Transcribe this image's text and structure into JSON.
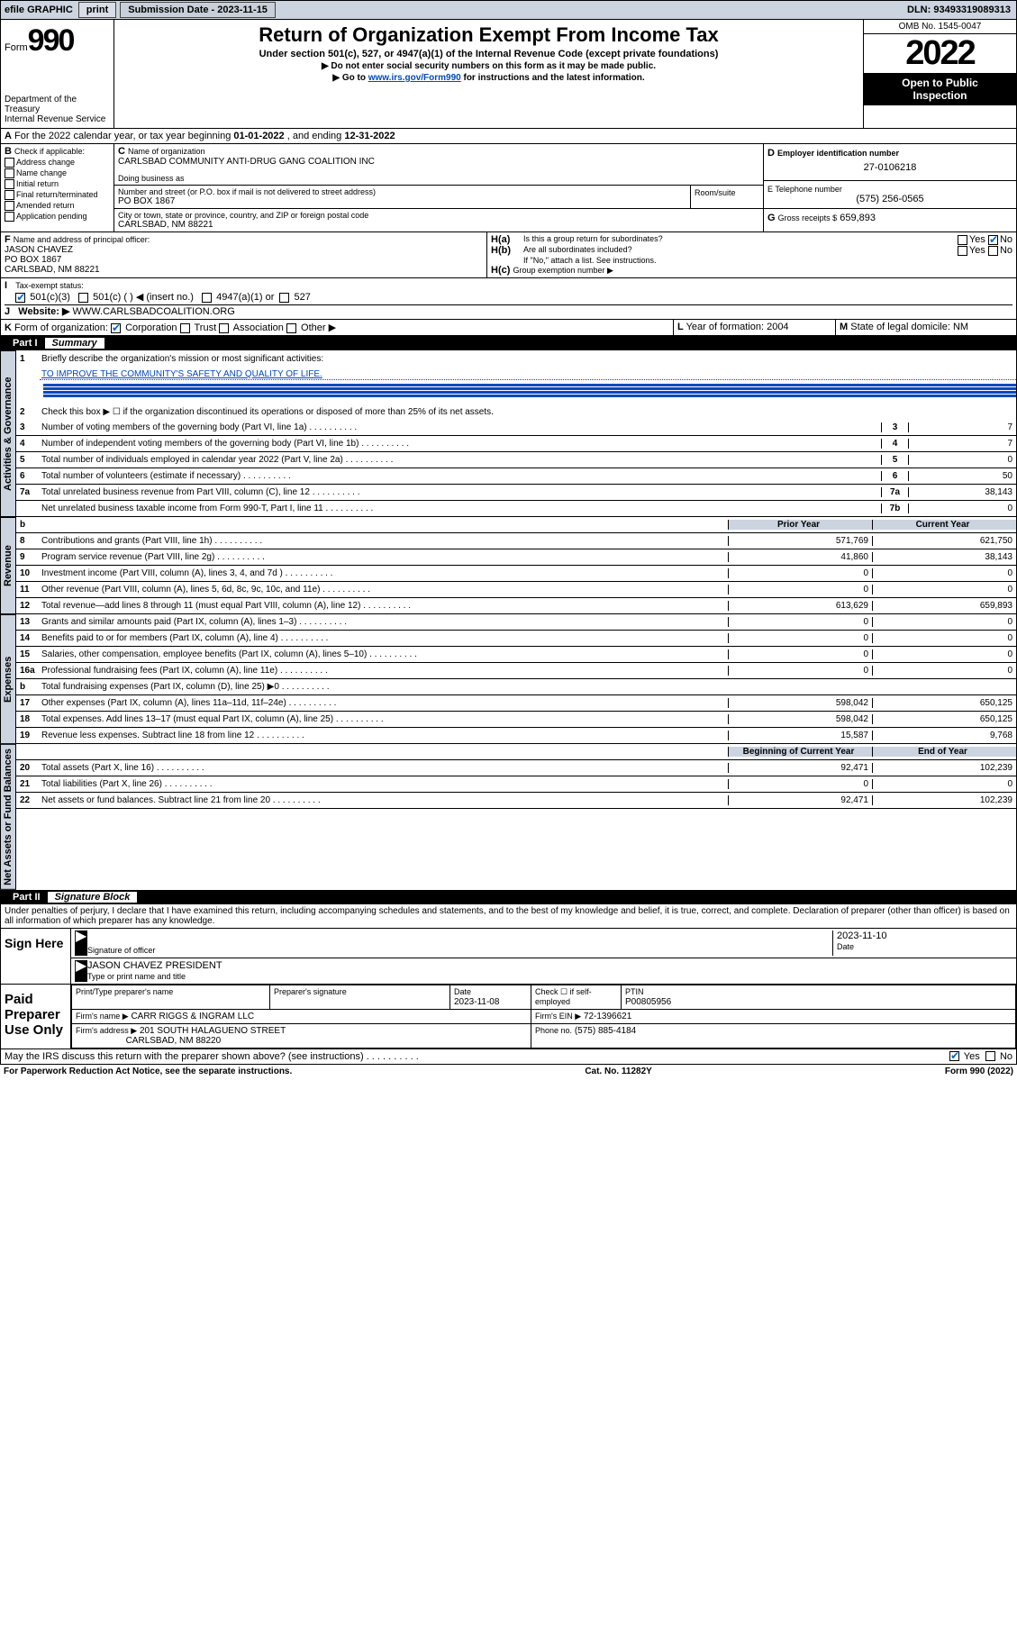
{
  "topbar": {
    "efile": "efile GRAPHIC",
    "print": "print",
    "subdate_lbl": "Submission Date - 2023-11-15",
    "dln": "DLN: 93493319089313"
  },
  "header": {
    "form_word": "Form",
    "form_num": "990",
    "dept": "Department of the Treasury",
    "irs": "Internal Revenue Service",
    "title": "Return of Organization Exempt From Income Tax",
    "subtitle": "Under section 501(c), 527, or 4947(a)(1) of the Internal Revenue Code (except private foundations)",
    "instr1": "▶ Do not enter social security numbers on this form as it may be made public.",
    "instr2_pre": "▶ Go to ",
    "instr2_link": "www.irs.gov/Form990",
    "instr2_post": " for instructions and the latest information.",
    "omb": "OMB No. 1545-0047",
    "year": "2022",
    "open1": "Open to Public",
    "open2": "Inspection"
  },
  "A": {
    "text": "For the 2022 calendar year, or tax year beginning ",
    "begin": "01-01-2022",
    "mid": " , and ending ",
    "end": "12-31-2022"
  },
  "B": {
    "lbl": "Check if applicable:",
    "opts": [
      "Address change",
      "Name change",
      "Initial return",
      "Final return/terminated",
      "Amended return",
      "Application pending"
    ]
  },
  "C": {
    "name_lbl": "Name of organization",
    "name": "CARLSBAD COMMUNITY ANTI-DRUG GANG COALITION INC",
    "dba_lbl": "Doing business as",
    "addr_lbl": "Number and street (or P.O. box if mail is not delivered to street address)",
    "room_lbl": "Room/suite",
    "addr": "PO BOX 1867",
    "city_lbl": "City or town, state or province, country, and ZIP or foreign postal code",
    "city": "CARLSBAD, NM  88221"
  },
  "D": {
    "lbl": "Employer identification number",
    "val": "27-0106218"
  },
  "E": {
    "lbl": "E Telephone number",
    "val": "(575) 256-0565"
  },
  "G": {
    "lbl": "Gross receipts $",
    "val": "659,893"
  },
  "F": {
    "lbl": "Name and address of principal officer:",
    "name": "JASON CHAVEZ",
    "addr1": "PO BOX 1867",
    "addr2": "CARLSBAD, NM  88221"
  },
  "H": {
    "a": "Is this a group return for subordinates?",
    "b": "Are all subordinates included?",
    "bnote": "If \"No,\" attach a list. See instructions.",
    "c": "Group exemption number ▶"
  },
  "I": {
    "lbl": "Tax-exempt status:",
    "o1": "501(c)(3)",
    "o2": "501(c) (   ) ◀ (insert no.)",
    "o3": "4947(a)(1) or",
    "o4": "527"
  },
  "J": {
    "lbl": "Website: ▶",
    "val": "WWW.CARLSBADCOALITION.ORG"
  },
  "K": {
    "lbl": "Form of organization:",
    "opts": [
      "Corporation",
      "Trust",
      "Association",
      "Other ▶"
    ]
  },
  "L": {
    "lbl": "Year of formation:",
    "val": "2004"
  },
  "M": {
    "lbl": "State of legal domicile:",
    "val": "NM"
  },
  "partI": {
    "num": "Part I",
    "ttl": "Summary"
  },
  "summary": {
    "q1": "Briefly describe the organization's mission or most significant activities:",
    "mission": "TO IMPROVE THE COMMUNITY'S SAFETY AND QUALITY OF LIFE.",
    "q2": "Check this box ▶ ☐  if the organization discontinued its operations or disposed of more than 25% of its net assets.",
    "lines": [
      {
        "n": "3",
        "t": "Number of voting members of the governing body (Part VI, line 1a)",
        "c": "3",
        "v": "7"
      },
      {
        "n": "4",
        "t": "Number of independent voting members of the governing body (Part VI, line 1b)",
        "c": "4",
        "v": "7"
      },
      {
        "n": "5",
        "t": "Total number of individuals employed in calendar year 2022 (Part V, line 2a)",
        "c": "5",
        "v": "0"
      },
      {
        "n": "6",
        "t": "Total number of volunteers (estimate if necessary)",
        "c": "6",
        "v": "50"
      },
      {
        "n": "7a",
        "t": "Total unrelated business revenue from Part VIII, column (C), line 12",
        "c": "7a",
        "v": "38,143"
      },
      {
        "n": "",
        "t": "Net unrelated business taxable income from Form 990-T, Part I, line 11",
        "c": "7b",
        "v": "0"
      }
    ],
    "priorhdr": "Prior Year",
    "currhdr": "Current Year",
    "rev": [
      {
        "n": "8",
        "t": "Contributions and grants (Part VIII, line 1h)",
        "p": "571,769",
        "c": "621,750"
      },
      {
        "n": "9",
        "t": "Program service revenue (Part VIII, line 2g)",
        "p": "41,860",
        "c": "38,143"
      },
      {
        "n": "10",
        "t": "Investment income (Part VIII, column (A), lines 3, 4, and 7d )",
        "p": "0",
        "c": "0"
      },
      {
        "n": "11",
        "t": "Other revenue (Part VIII, column (A), lines 5, 6d, 8c, 9c, 10c, and 11e)",
        "p": "0",
        "c": "0"
      },
      {
        "n": "12",
        "t": "Total revenue—add lines 8 through 11 (must equal Part VIII, column (A), line 12)",
        "p": "613,629",
        "c": "659,893"
      }
    ],
    "exp": [
      {
        "n": "13",
        "t": "Grants and similar amounts paid (Part IX, column (A), lines 1–3)",
        "p": "0",
        "c": "0"
      },
      {
        "n": "14",
        "t": "Benefits paid to or for members (Part IX, column (A), line 4)",
        "p": "0",
        "c": "0"
      },
      {
        "n": "15",
        "t": "Salaries, other compensation, employee benefits (Part IX, column (A), lines 5–10)",
        "p": "0",
        "c": "0"
      },
      {
        "n": "16a",
        "t": "Professional fundraising fees (Part IX, column (A), line 11e)",
        "p": "0",
        "c": "0"
      },
      {
        "n": "b",
        "t": "Total fundraising expenses (Part IX, column (D), line 25) ▶0",
        "p": "",
        "c": "",
        "grey": true
      },
      {
        "n": "17",
        "t": "Other expenses (Part IX, column (A), lines 11a–11d, 11f–24e)",
        "p": "598,042",
        "c": "650,125"
      },
      {
        "n": "18",
        "t": "Total expenses. Add lines 13–17 (must equal Part IX, column (A), line 25)",
        "p": "598,042",
        "c": "650,125"
      },
      {
        "n": "19",
        "t": "Revenue less expenses. Subtract line 18 from line 12",
        "p": "15,587",
        "c": "9,768"
      }
    ],
    "boyhdr": "Beginning of Current Year",
    "eoyhdr": "End of Year",
    "net": [
      {
        "n": "20",
        "t": "Total assets (Part X, line 16)",
        "p": "92,471",
        "c": "102,239"
      },
      {
        "n": "21",
        "t": "Total liabilities (Part X, line 26)",
        "p": "0",
        "c": "0"
      },
      {
        "n": "22",
        "t": "Net assets or fund balances. Subtract line 21 from line 20",
        "p": "92,471",
        "c": "102,239"
      }
    ]
  },
  "sidetabs": {
    "gov": "Activities & Governance",
    "rev": "Revenue",
    "exp": "Expenses",
    "net": "Net Assets or Fund Balances"
  },
  "partII": {
    "num": "Part II",
    "ttl": "Signature Block"
  },
  "sig": {
    "decl": "Under penalties of perjury, I declare that I have examined this return, including accompanying schedules and statements, and to the best of my knowledge and belief, it is true, correct, and complete. Declaration of preparer (other than officer) is based on all information of which preparer has any knowledge.",
    "sign_here": "Sign Here",
    "sig_officer": "Signature of officer",
    "date_lbl": "Date",
    "date": "2023-11-10",
    "officer": "JASON CHAVEZ  PRESIDENT",
    "type_lbl": "Type or print name and title",
    "paid": "Paid Preparer Use Only",
    "prep_name_lbl": "Print/Type preparer's name",
    "prep_sig_lbl": "Preparer's signature",
    "prep_date": "2023-11-08",
    "check_if": "Check ☐ if self-employed",
    "ptin_lbl": "PTIN",
    "ptin": "P00805956",
    "firm_name_lbl": "Firm's name   ▶",
    "firm_name": "CARR RIGGS & INGRAM LLC",
    "firm_ein_lbl": "Firm's EIN ▶",
    "firm_ein": "72-1396621",
    "firm_addr_lbl": "Firm's address ▶",
    "firm_addr1": "201 SOUTH HALAGUENO STREET",
    "firm_addr2": "CARLSBAD, NM  88220",
    "phone_lbl": "Phone no.",
    "phone": "(575) 885-4184",
    "may_discuss": "May the IRS discuss this return with the preparer shown above? (see instructions)"
  },
  "footer": {
    "pra": "For Paperwork Reduction Act Notice, see the separate instructions.",
    "cat": "Cat. No. 11282Y",
    "form": "Form 990 (2022)"
  },
  "yn": {
    "yes": "Yes",
    "no": "No"
  }
}
